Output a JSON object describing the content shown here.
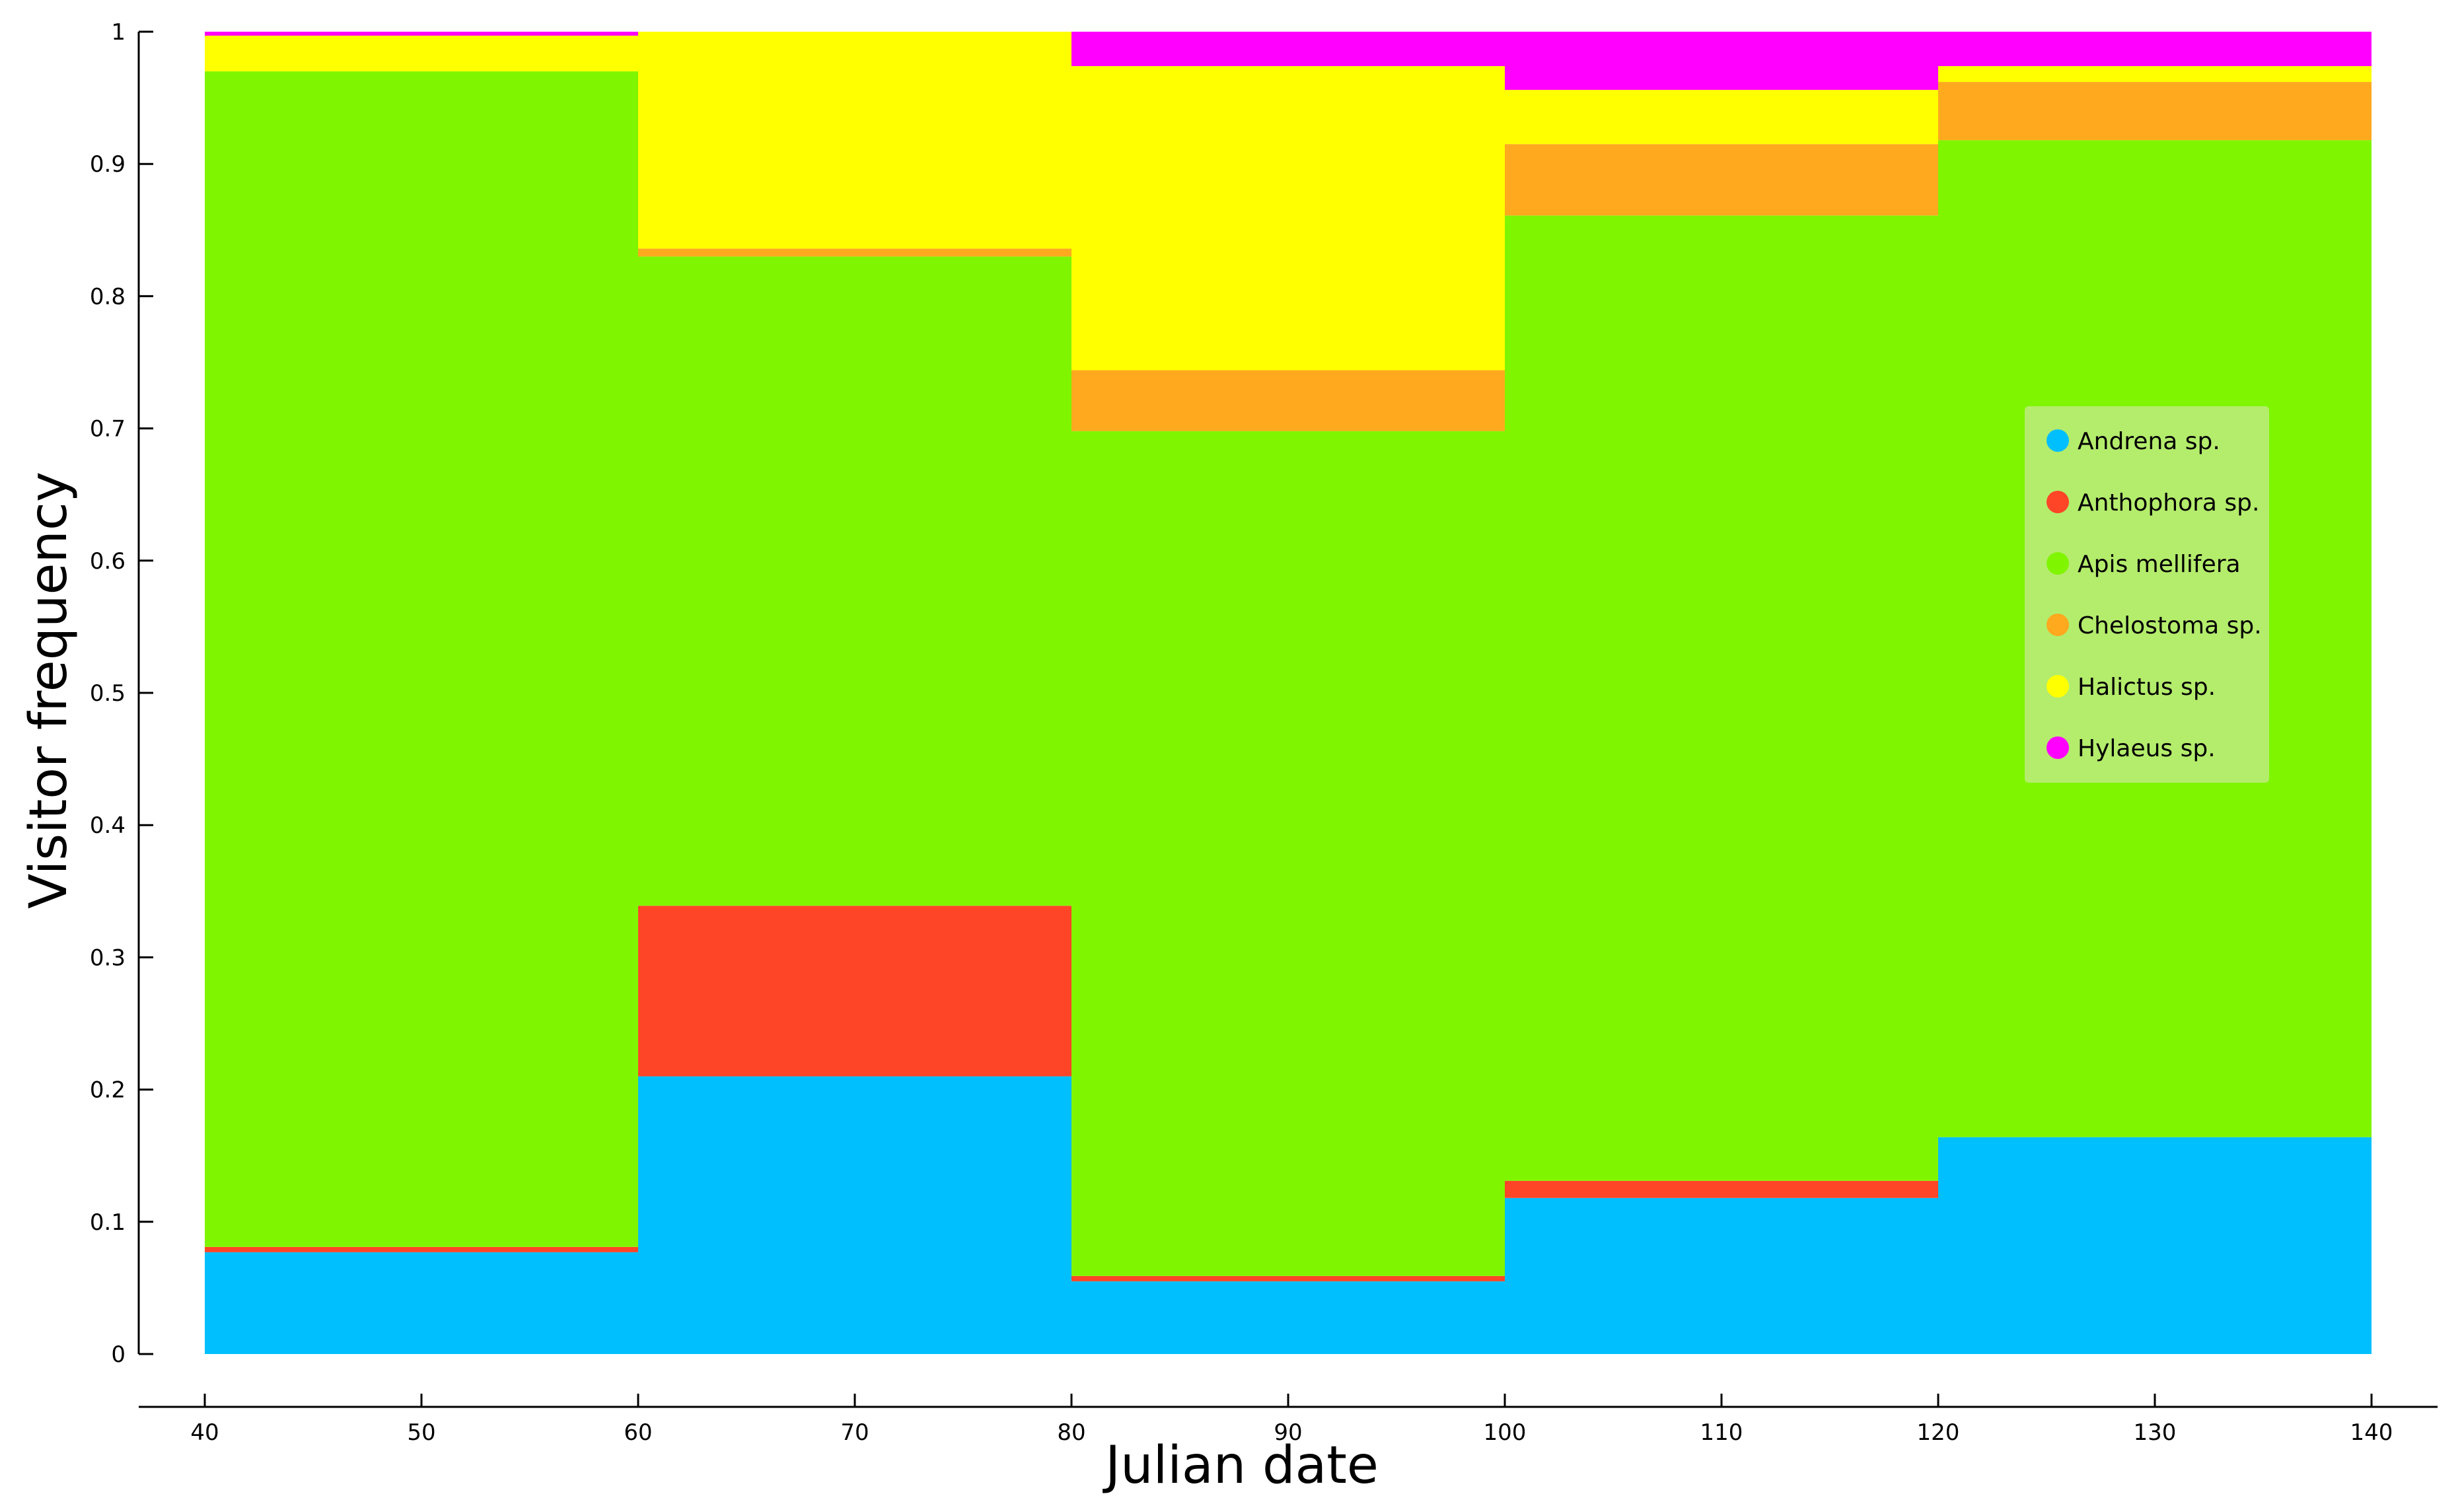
{
  "chart_data": {
    "type": "bar",
    "stacked": true,
    "xlabel": "Julian date",
    "ylabel": "Visitor frequency",
    "xlim": [
      40,
      140
    ],
    "ylim": [
      0,
      1
    ],
    "x_ticks": [
      "40",
      "50",
      "60",
      "70",
      "80",
      "90",
      "100",
      "110",
      "120",
      "130",
      "140"
    ],
    "y_ticks": [
      "0",
      "0.1",
      "0.2",
      "0.3",
      "0.4",
      "0.5",
      "0.6",
      "0.7",
      "0.8",
      "0.9",
      "1"
    ],
    "bins": [
      [
        40,
        60
      ],
      [
        60,
        80
      ],
      [
        80,
        100
      ],
      [
        100,
        120
      ],
      [
        120,
        140
      ]
    ],
    "series": [
      {
        "name": "Andrena sp.",
        "color": "#00bfff",
        "values": [
          0.077,
          0.21,
          0.055,
          0.118,
          0.164
        ]
      },
      {
        "name": "Anthophora sp.",
        "color": "#ff4527",
        "values": [
          0.004,
          0.129,
          0.004,
          0.013,
          0.0
        ]
      },
      {
        "name": "Apis mellifera",
        "color": "#80f500",
        "values": [
          0.889,
          0.491,
          0.639,
          0.73,
          0.754
        ]
      },
      {
        "name": "Chelostoma sp.",
        "color": "#ffa91e",
        "values": [
          0.0,
          0.006,
          0.046,
          0.054,
          0.044
        ]
      },
      {
        "name": "Halictus sp.",
        "color": "#ffff00",
        "values": [
          0.027,
          0.164,
          0.23,
          0.041,
          0.012
        ]
      },
      {
        "name": "Hylaeus sp.",
        "color": "#ff00ff",
        "values": [
          0.003,
          0.0,
          0.026,
          0.044,
          0.026
        ]
      }
    ],
    "legend_position": "right",
    "grid": false
  }
}
